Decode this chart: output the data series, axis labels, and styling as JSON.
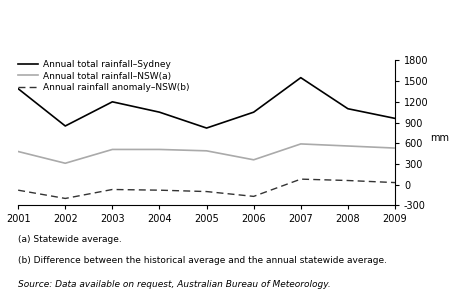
{
  "years": [
    2001,
    2002,
    2003,
    2004,
    2005,
    2006,
    2007,
    2008,
    2009
  ],
  "sydney": [
    1390,
    850,
    1200,
    1050,
    820,
    1050,
    1550,
    1100,
    960
  ],
  "nsw": [
    480,
    310,
    510,
    510,
    490,
    360,
    590,
    560,
    530
  ],
  "anomaly": [
    -80,
    -200,
    -70,
    -80,
    -100,
    -170,
    80,
    60,
    30
  ],
  "sydney_color": "#000000",
  "nsw_color": "#aaaaaa",
  "anomaly_color": "#333333",
  "legend_labels": [
    "Annual total rainfall–Sydney",
    "Annual total rainfall–NSW(a)",
    "Annual rainfall anomaly–NSW(b)"
  ],
  "footnote_a": "(a) Statewide average.",
  "footnote_b": "(b) Difference between the historical average and the annual statewide average.",
  "source": "Source: Data available on request, Australian Bureau of Meteorology.",
  "ylim": [
    -300,
    1800
  ],
  "yticks": [
    -300,
    0,
    300,
    600,
    900,
    1200,
    1500,
    1800
  ],
  "ylabel": "mm",
  "background_color": "#ffffff"
}
